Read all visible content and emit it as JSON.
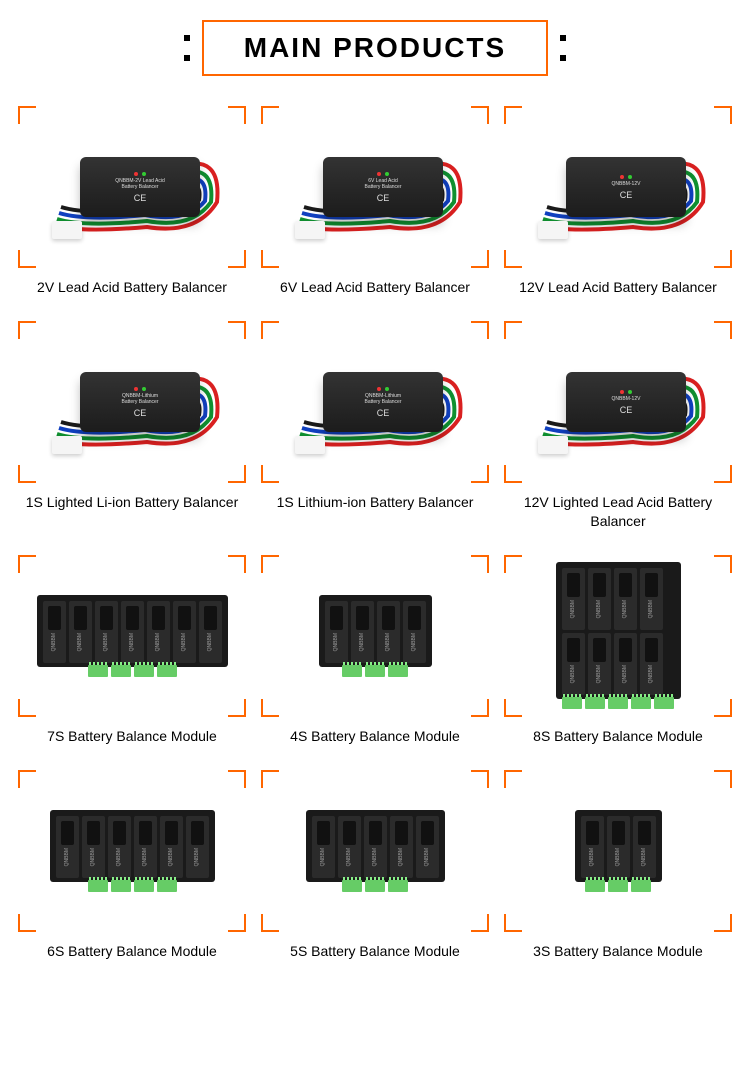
{
  "title": "MAIN PRODUCTS",
  "accent_color": "#ff6600",
  "cell_brand": "QNBBM",
  "products": [
    {
      "label": "2V Lead Acid Battery Balancer",
      "kind": "boxwire",
      "box_text1": "QNBBM-2V Lead Acid",
      "box_text2": "Battery Balancer"
    },
    {
      "label": "6V Lead Acid Battery Balancer",
      "kind": "boxwire",
      "box_text1": "6V Lead Acid",
      "box_text2": "Battery Balancer"
    },
    {
      "label": "12V Lead Acid Battery Balancer",
      "kind": "boxwire",
      "box_text1": "QNBBM-12V",
      "box_text2": " "
    },
    {
      "label": "1S Lighted Li-ion Battery Balancer",
      "kind": "boxwire",
      "box_text1": "QNBBM-Lithium",
      "box_text2": "Battery Balancer"
    },
    {
      "label": "1S Lithium-ion Battery Balancer",
      "kind": "boxwire",
      "box_text1": "QNBBM-Lithium",
      "box_text2": "Battery Balancer"
    },
    {
      "label": "12V Lighted  Lead Acid Battery Balancer",
      "kind": "boxwire",
      "box_text1": "QNBBM-12V",
      "box_text2": " "
    },
    {
      "label": "7S Battery Balance Module",
      "kind": "pcb",
      "cells": 7,
      "rows": 1,
      "connectors": 4
    },
    {
      "label": "4S Battery Balance Module",
      "kind": "pcb",
      "cells": 4,
      "rows": 1,
      "connectors": 3
    },
    {
      "label": "8S Battery Balance Module",
      "kind": "pcb",
      "cells": 8,
      "rows": 2,
      "connectors": 5
    },
    {
      "label": "6S Battery Balance Module",
      "kind": "pcb",
      "cells": 6,
      "rows": 1,
      "connectors": 4
    },
    {
      "label": "5S Battery Balance Module",
      "kind": "pcb",
      "cells": 5,
      "rows": 1,
      "connectors": 3
    },
    {
      "label": "3S Battery Balance Module",
      "kind": "pcb",
      "cells": 3,
      "rows": 1,
      "connectors": 3
    }
  ],
  "wire_colors": [
    "#d92020",
    "#109030",
    "#1040c0",
    "#1a1a1a"
  ]
}
